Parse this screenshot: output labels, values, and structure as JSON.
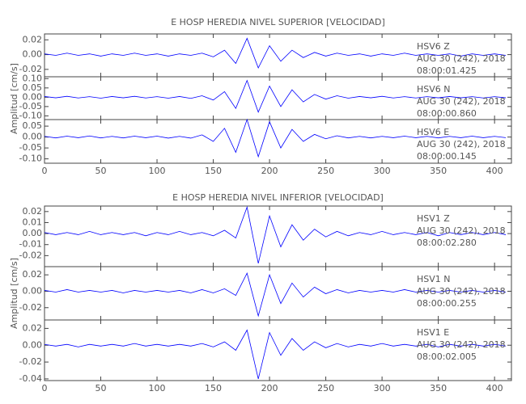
{
  "chart_data": [
    {
      "type": "line",
      "title": "E HOSP HEREDIA NIVEL SUPERIOR [VELOCIDAD]",
      "y_label": "Amplitud [cm/s]",
      "xlim": [
        0,
        415
      ],
      "xticks": [
        0,
        50,
        100,
        150,
        200,
        250,
        300,
        350,
        400
      ],
      "x": [
        0,
        10,
        20,
        30,
        40,
        50,
        60,
        70,
        80,
        90,
        100,
        110,
        120,
        130,
        140,
        150,
        160,
        170,
        180,
        190,
        200,
        210,
        220,
        230,
        240,
        250,
        260,
        270,
        280,
        290,
        300,
        310,
        320,
        330,
        340,
        350,
        360,
        370,
        380,
        390,
        400,
        410
      ],
      "panels": [
        {
          "station": "HSV6   Z",
          "date": "AUG 30 (242), 2018",
          "time": "08:00:01.425",
          "ylim": [
            -0.03,
            0.028
          ],
          "yticks": [
            0.02,
            {
              "value": 0,
              "label": "0.00"
            },
            -0.02
          ],
          "series": [
            {
              "color": "#0000ff",
              "values": [
                0.001,
                -0.001,
                0.002,
                -0.001,
                0.001,
                -0.002,
                0.001,
                -0.001,
                0.002,
                -0.001,
                0.001,
                -0.002,
                0.001,
                -0.001,
                0.002,
                -0.003,
                0.006,
                -0.012,
                0.022,
                -0.018,
                0.012,
                -0.009,
                0.006,
                -0.004,
                0.003,
                -0.002,
                0.002,
                -0.001,
                0.001,
                -0.002,
                0.001,
                -0.001,
                0.002,
                -0.001,
                0.001,
                -0.001,
                0.001,
                -0.002,
                0.001,
                -0.001,
                0.001,
                -0.001
              ]
            }
          ]
        },
        {
          "station": "HSV6   N",
          "date": "AUG 30 (242), 2018",
          "time": "08:00:00.860",
          "ylim": [
            -0.12,
            0.11
          ],
          "yticks": [
            {
              "value": 0.1,
              "label": "0.10"
            },
            0.05,
            {
              "value": 0,
              "label": "0.00"
            },
            -0.05,
            {
              "value": -0.1,
              "label": "-0.10"
            }
          ],
          "series": [
            {
              "color": "#0000ff",
              "values": [
                0.004,
                -0.003,
                0.005,
                -0.004,
                0.003,
                -0.005,
                0.004,
                -0.003,
                0.005,
                -0.004,
                0.003,
                -0.005,
                0.004,
                -0.006,
                0.008,
                -0.015,
                0.03,
                -0.06,
                0.09,
                -0.08,
                0.06,
                -0.05,
                0.04,
                -0.025,
                0.015,
                -0.01,
                0.008,
                -0.005,
                0.004,
                -0.003,
                0.005,
                -0.004,
                0.003,
                -0.004,
                0.003,
                -0.003,
                0.004,
                -0.003,
                0.003,
                -0.004,
                0.003,
                -0.003
              ]
            }
          ]
        },
        {
          "station": "HSV6   E",
          "date": "AUG 30 (242), 2018",
          "time": "08:00:00.145",
          "ylim": [
            -0.12,
            0.08
          ],
          "yticks": [
            0.05,
            {
              "value": 0,
              "label": "0.00"
            },
            -0.05,
            {
              "value": -0.1,
              "label": "-0.10"
            }
          ],
          "series": [
            {
              "color": "#0000ff",
              "values": [
                0.003,
                -0.004,
                0.004,
                -0.003,
                0.005,
                -0.004,
                0.003,
                -0.004,
                0.004,
                -0.003,
                0.004,
                -0.005,
                0.003,
                -0.005,
                0.01,
                -0.02,
                0.04,
                -0.07,
                0.08,
                -0.09,
                0.07,
                -0.05,
                0.035,
                -0.02,
                0.012,
                -0.008,
                0.006,
                -0.004,
                0.003,
                -0.004,
                0.003,
                -0.003,
                0.004,
                -0.003,
                0.003,
                -0.004,
                0.003,
                -0.003,
                0.004,
                -0.003,
                0.003,
                -0.003
              ]
            }
          ]
        }
      ]
    },
    {
      "type": "line",
      "title": "E HOSP HEREDIA NIVEL INFERIOR [VELOCIDAD]",
      "y_label": "Amplitud [cm/s]",
      "xlim": [
        0,
        415
      ],
      "xticks": [
        0,
        50,
        100,
        150,
        200,
        250,
        300,
        350,
        400
      ],
      "x": [
        0,
        10,
        20,
        30,
        40,
        50,
        60,
        70,
        80,
        90,
        100,
        110,
        120,
        130,
        140,
        150,
        160,
        170,
        180,
        190,
        200,
        210,
        220,
        230,
        240,
        250,
        260,
        270,
        280,
        290,
        300,
        310,
        320,
        330,
        340,
        350,
        360,
        370,
        380,
        390,
        400,
        410
      ],
      "panels": [
        {
          "station": "HSV1   Z",
          "date": "AUG 30 (242), 2018",
          "time": "08:00:02.280",
          "ylim": [
            -0.03,
            0.025
          ],
          "yticks": [
            0.02,
            0.01,
            {
              "value": 0,
              "label": "0.00"
            },
            -0.01,
            -0.02
          ],
          "series": [
            {
              "color": "#0000ff",
              "values": [
                0.001,
                -0.001,
                0.001,
                -0.001,
                0.002,
                -0.001,
                0.001,
                -0.001,
                0.001,
                -0.002,
                0.001,
                -0.001,
                0.002,
                -0.001,
                0.001,
                -0.002,
                0.003,
                -0.004,
                0.024,
                -0.027,
                0.016,
                -0.012,
                0.008,
                -0.006,
                0.004,
                -0.003,
                0.002,
                -0.002,
                0.001,
                -0.001,
                0.002,
                -0.001,
                0.001,
                -0.001,
                0.001,
                -0.002,
                0.001,
                -0.001,
                0.001,
                -0.001,
                0.001,
                -0.001
              ]
            }
          ]
        },
        {
          "station": "HSV1   N",
          "date": "AUG 30 (242), 2018",
          "time": "08:00:00.255",
          "ylim": [
            -0.035,
            0.03
          ],
          "yticks": [
            0.02,
            {
              "value": 0,
              "label": "0.00"
            },
            -0.02
          ],
          "series": [
            {
              "color": "#0000ff",
              "values": [
                0.001,
                -0.001,
                0.002,
                -0.001,
                0.001,
                -0.001,
                0.001,
                -0.002,
                0.001,
                -0.001,
                0.001,
                -0.001,
                0.001,
                -0.002,
                0.002,
                -0.002,
                0.003,
                -0.005,
                0.022,
                -0.03,
                0.02,
                -0.015,
                0.01,
                -0.007,
                0.005,
                -0.003,
                0.002,
                -0.002,
                0.001,
                -0.001,
                0.001,
                -0.001,
                0.002,
                -0.001,
                0.001,
                -0.001,
                0.001,
                -0.001,
                0.001,
                -0.001,
                0.001,
                -0.001
              ]
            }
          ]
        },
        {
          "station": "HSV1   E",
          "date": "AUG 30 (242), 2018",
          "time": "08:00:02.005",
          "ylim": [
            -0.042,
            0.03
          ],
          "yticks": [
            0.02,
            {
              "value": 0,
              "label": "0.00"
            },
            -0.02,
            -0.04
          ],
          "series": [
            {
              "color": "#0000ff",
              "values": [
                0.001,
                -0.001,
                0.001,
                -0.002,
                0.001,
                -0.001,
                0.001,
                -0.001,
                0.002,
                -0.001,
                0.001,
                -0.001,
                0.001,
                -0.001,
                0.002,
                -0.002,
                0.004,
                -0.006,
                0.018,
                -0.04,
                0.015,
                -0.012,
                0.008,
                -0.006,
                0.004,
                -0.003,
                0.002,
                -0.002,
                0.001,
                -0.001,
                0.002,
                -0.001,
                0.001,
                -0.001,
                0.001,
                -0.002,
                0.001,
                -0.001,
                0.001,
                -0.001,
                0.001,
                -0.001
              ]
            }
          ]
        }
      ]
    }
  ]
}
